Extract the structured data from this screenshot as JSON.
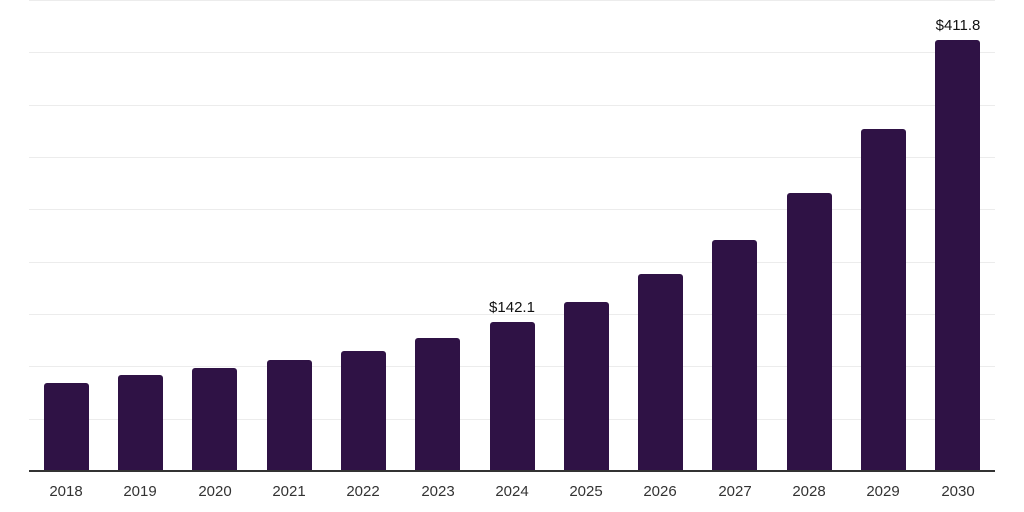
{
  "chart_data": {
    "type": "bar",
    "categories": [
      "2018",
      "2019",
      "2020",
      "2021",
      "2022",
      "2023",
      "2024",
      "2025",
      "2026",
      "2027",
      "2028",
      "2029",
      "2030"
    ],
    "values": [
      84.0,
      91.8,
      98.5,
      106.0,
      114.6,
      127.1,
      142.1,
      161.9,
      187.8,
      221.0,
      265.9,
      326.5,
      411.8
    ],
    "bar_labels": [
      "",
      "",
      "",
      "",
      "",
      "",
      "$142.1",
      "",
      "",
      "",
      "",
      "",
      "$411.8"
    ],
    "xlabel": "",
    "ylabel": "",
    "ylim": [
      0,
      450
    ],
    "gridline_step": 50,
    "grid": "horizontal-only",
    "legend": "none",
    "y_tick_labels_visible": false,
    "colors": {
      "bar_fill": "#2F1245",
      "gridline": "#ececec",
      "axis_line": "#333333",
      "tick_label": "#333333",
      "data_label": "#111111",
      "background": "#ffffff"
    }
  }
}
